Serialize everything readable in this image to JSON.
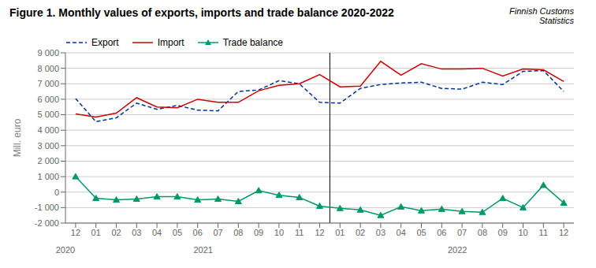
{
  "chart_data": {
    "type": "line",
    "title": "Figure 1. Monthly values of exports, imports and trade balance 2020-2022",
    "subtitle": "Finnish Customs\nStatistics",
    "y_label": "Mill. euro",
    "categories": [
      "12",
      "01",
      "02",
      "03",
      "04",
      "05",
      "06",
      "07",
      "08",
      "09",
      "10",
      "11",
      "12",
      "01",
      "02",
      "03",
      "04",
      "05",
      "06",
      "07",
      "08",
      "09",
      "10",
      "11",
      "12"
    ],
    "annotations": [
      "2020",
      "2021",
      "2022"
    ],
    "series": [
      {
        "name": "Export",
        "color": "#003399",
        "line_style": "dashed",
        "values": [
          6050,
          4550,
          4800,
          5750,
          5350,
          5600,
          5300,
          5250,
          6500,
          6600,
          7200,
          7000,
          5800,
          5750,
          6700,
          6950,
          7050,
          7100,
          6700,
          6650,
          7100,
          6950,
          7800,
          7850,
          6500
        ]
      },
      {
        "name": "Import",
        "color": "#cc0000",
        "line_style": "solid",
        "values": [
          5050,
          4850,
          5100,
          6100,
          5500,
          5450,
          6000,
          5800,
          5800,
          6550,
          6900,
          7000,
          7600,
          6800,
          6850,
          8450,
          7550,
          8300,
          7950,
          7950,
          8000,
          7500,
          7950,
          7900,
          7150
        ]
      },
      {
        "name": "Trade balance",
        "color": "#009966",
        "line_style": "solid",
        "marker": "triangle",
        "values": [
          1000,
          -400,
          -500,
          -450,
          -300,
          -300,
          -500,
          -450,
          -600,
          100,
          -200,
          -350,
          -900,
          -1050,
          -1150,
          -1500,
          -950,
          -1200,
          -1100,
          -1250,
          -1300,
          -400,
          -1000,
          450,
          -700
        ]
      }
    ],
    "ylim": [
      -2000,
      9000
    ],
    "yticks": [
      {
        "value": -2000,
        "label": "-2 000"
      },
      {
        "value": -1000,
        "label": "-1 000"
      },
      0,
      {
        "value": 1000,
        "label": "1 000"
      },
      {
        "value": 2000,
        "label": "2 000"
      },
      {
        "value": 3000,
        "label": "3 000"
      },
      {
        "value": 4000,
        "label": "4 000"
      },
      {
        "value": 5000,
        "label": "5 000"
      },
      {
        "value": 6000,
        "label": "6 000"
      },
      {
        "value": 7000,
        "label": "7 000"
      },
      {
        "value": 8000,
        "label": "8 000"
      },
      {
        "value": 9000,
        "label": "9 000"
      }
    ],
    "grid": true,
    "legend": "upper left"
  }
}
